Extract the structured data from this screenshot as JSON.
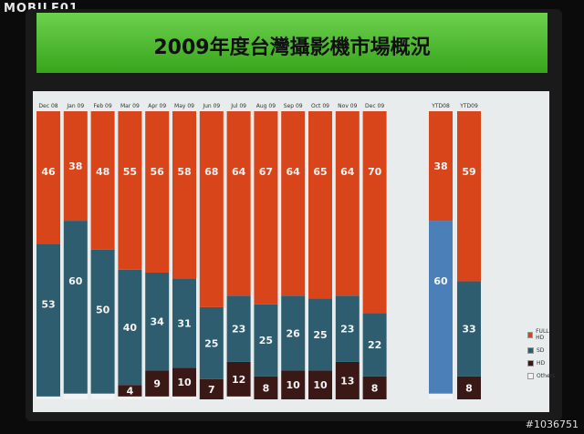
{
  "watermark": {
    "left": "MOBILE01",
    "right": "#1036751"
  },
  "title": "2009年度台灣攝影機市場概況",
  "colors": {
    "full_hd": "#d8451a",
    "sd": "#2d5d6e",
    "hd": "#3a1816",
    "others": "#f2f2f2",
    "sd_ytd08": "#4a7fb8"
  },
  "chart_data": {
    "type": "bar",
    "stacked": true,
    "categories": [
      "Dec 08",
      "Jan 09",
      "Feb 09",
      "Mar 09",
      "Apr 09",
      "May 09",
      "Jun 09",
      "Jul 09",
      "Aug 09",
      "Sep 09",
      "Oct 09",
      "Nov 09",
      "Dec 09",
      "YTD08",
      "YTD09"
    ],
    "series": [
      {
        "name": "HD",
        "values": [
          0,
          0,
          0,
          4,
          9,
          10,
          7,
          12,
          8,
          10,
          10,
          13,
          8,
          0,
          8
        ],
        "labels": [
          "",
          "",
          "",
          "4",
          "9",
          "10",
          "7",
          "12",
          "8",
          "10",
          "10",
          "13",
          "8",
          "",
          "8"
        ]
      },
      {
        "name": "SD",
        "values": [
          53,
          60,
          50,
          40,
          34,
          31,
          25,
          23,
          25,
          26,
          25,
          23,
          22,
          60,
          33
        ],
        "labels": [
          "53",
          "60",
          "50",
          "40",
          "34",
          "31",
          "25",
          "23",
          "25",
          "26",
          "25",
          "23",
          "22",
          "60",
          "33"
        ]
      },
      {
        "name": "FULL HD",
        "values": [
          46,
          38,
          48,
          55,
          56,
          58,
          68,
          64,
          67,
          64,
          65,
          64,
          70,
          38,
          59
        ],
        "labels": [
          "46",
          "38",
          "48",
          "55",
          "56",
          "58",
          "68",
          "64",
          "67",
          "64",
          "65",
          "64",
          "70",
          "38",
          "59"
        ]
      },
      {
        "name": "Others",
        "values": [
          1,
          2,
          2,
          1,
          1,
          1,
          0,
          1,
          0,
          0,
          0,
          0,
          0,
          2,
          0
        ],
        "labels": []
      }
    ],
    "legend": [
      "FULL HD",
      "SD",
      "HD",
      "Others"
    ],
    "ylim": [
      0,
      100
    ]
  }
}
